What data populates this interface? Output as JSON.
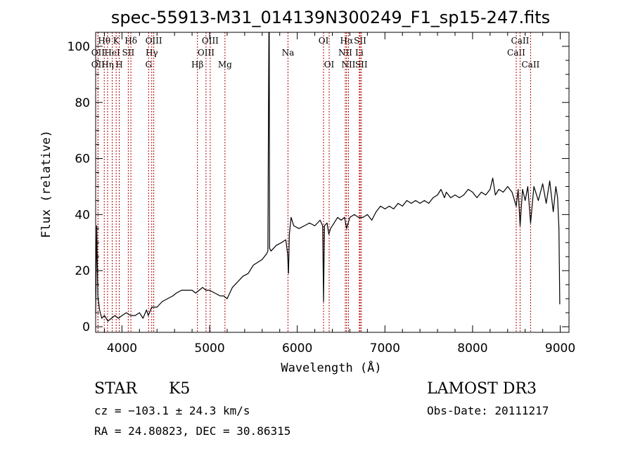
{
  "chart_data": {
    "type": "line",
    "title": "spec-55913-M31_014139N300249_F1_sp15-247.fits",
    "xlabel": "Wavelength (Å)",
    "ylabel": "Flux (relative)",
    "xlim": [
      3700,
      9100
    ],
    "ylim": [
      -2,
      105
    ],
    "xticks": [
      4000,
      5000,
      6000,
      7000,
      8000,
      9000
    ],
    "yticks": [
      0,
      20,
      40,
      60,
      80,
      100
    ],
    "line_color": "#000000",
    "marker_color": "#b30000",
    "spectrum": [
      [
        3700,
        5
      ],
      [
        3712,
        36
      ],
      [
        3725,
        11
      ],
      [
        3745,
        6
      ],
      [
        3770,
        3
      ],
      [
        3800,
        4
      ],
      [
        3840,
        2
      ],
      [
        3880,
        3
      ],
      [
        3920,
        4
      ],
      [
        3960,
        3
      ],
      [
        4000,
        4
      ],
      [
        4050,
        5
      ],
      [
        4100,
        4
      ],
      [
        4150,
        4
      ],
      [
        4200,
        5
      ],
      [
        4240,
        3
      ],
      [
        4280,
        6
      ],
      [
        4300,
        4
      ],
      [
        4340,
        7
      ],
      [
        4400,
        7
      ],
      [
        4460,
        9
      ],
      [
        4520,
        10
      ],
      [
        4580,
        11
      ],
      [
        4620,
        12
      ],
      [
        4680,
        13
      ],
      [
        4740,
        13
      ],
      [
        4800,
        13
      ],
      [
        4840,
        12
      ],
      [
        4880,
        13
      ],
      [
        4920,
        14
      ],
      [
        4960,
        13
      ],
      [
        5000,
        13
      ],
      [
        5060,
        12
      ],
      [
        5120,
        11
      ],
      [
        5160,
        11
      ],
      [
        5200,
        10
      ],
      [
        5260,
        14
      ],
      [
        5320,
        16
      ],
      [
        5380,
        18
      ],
      [
        5440,
        19
      ],
      [
        5500,
        22
      ],
      [
        5550,
        23
      ],
      [
        5600,
        24
      ],
      [
        5650,
        26
      ],
      [
        5665,
        27
      ],
      [
        5672,
        80
      ],
      [
        5676,
        105
      ],
      [
        5680,
        105
      ],
      [
        5684,
        28
      ],
      [
        5700,
        27
      ],
      [
        5760,
        29
      ],
      [
        5820,
        30
      ],
      [
        5870,
        31
      ],
      [
        5890,
        26
      ],
      [
        5900,
        19
      ],
      [
        5910,
        33
      ],
      [
        5930,
        39
      ],
      [
        5960,
        36
      ],
      [
        6020,
        35
      ],
      [
        6080,
        36
      ],
      [
        6140,
        37
      ],
      [
        6200,
        36
      ],
      [
        6260,
        38
      ],
      [
        6290,
        36
      ],
      [
        6300,
        9
      ],
      [
        6310,
        36
      ],
      [
        6340,
        37
      ],
      [
        6360,
        33
      ],
      [
        6380,
        35
      ],
      [
        6420,
        37
      ],
      [
        6460,
        39
      ],
      [
        6500,
        38
      ],
      [
        6540,
        39
      ],
      [
        6563,
        35
      ],
      [
        6600,
        39
      ],
      [
        6650,
        40
      ],
      [
        6700,
        39
      ],
      [
        6750,
        39
      ],
      [
        6800,
        40
      ],
      [
        6850,
        38
      ],
      [
        6900,
        41
      ],
      [
        6950,
        43
      ],
      [
        7000,
        42
      ],
      [
        7050,
        43
      ],
      [
        7100,
        42
      ],
      [
        7150,
        44
      ],
      [
        7200,
        43
      ],
      [
        7250,
        45
      ],
      [
        7300,
        44
      ],
      [
        7350,
        45
      ],
      [
        7400,
        44
      ],
      [
        7450,
        45
      ],
      [
        7500,
        44
      ],
      [
        7550,
        46
      ],
      [
        7600,
        47
      ],
      [
        7640,
        49
      ],
      [
        7680,
        46
      ],
      [
        7700,
        48
      ],
      [
        7750,
        46
      ],
      [
        7800,
        47
      ],
      [
        7850,
        46
      ],
      [
        7900,
        47
      ],
      [
        7950,
        49
      ],
      [
        8000,
        48
      ],
      [
        8050,
        46
      ],
      [
        8100,
        48
      ],
      [
        8150,
        47
      ],
      [
        8200,
        49
      ],
      [
        8230,
        53
      ],
      [
        8260,
        47
      ],
      [
        8300,
        49
      ],
      [
        8350,
        48
      ],
      [
        8400,
        50
      ],
      [
        8450,
        48
      ],
      [
        8498,
        43
      ],
      [
        8520,
        49
      ],
      [
        8542,
        36
      ],
      [
        8570,
        49
      ],
      [
        8600,
        45
      ],
      [
        8630,
        50
      ],
      [
        8662,
        37
      ],
      [
        8700,
        50
      ],
      [
        8750,
        45
      ],
      [
        8800,
        51
      ],
      [
        8840,
        44
      ],
      [
        8880,
        52
      ],
      [
        8920,
        41
      ],
      [
        8950,
        50
      ],
      [
        8970,
        46
      ],
      [
        8985,
        35
      ],
      [
        8995,
        8
      ]
    ],
    "line_markers": [
      {
        "label": "OII",
        "wavelength": 3727,
        "row": 2
      },
      {
        "label": "Hθ",
        "wavelength": 3798,
        "row": 0
      },
      {
        "label": "OII",
        "wavelength": 3727,
        "row": 1
      },
      {
        "label": "Hη",
        "wavelength": 3836,
        "row": 2
      },
      {
        "label": "HeI",
        "wavelength": 3889,
        "row": 1
      },
      {
        "label": "K",
        "wavelength": 3934,
        "row": 0
      },
      {
        "label": "H",
        "wavelength": 3969,
        "row": 2
      },
      {
        "label": "SII",
        "wavelength": 4072,
        "row": 1
      },
      {
        "label": "Hδ",
        "wavelength": 4102,
        "row": 0
      },
      {
        "label": "G",
        "wavelength": 4304,
        "row": 2
      },
      {
        "label": "Hγ",
        "wavelength": 4340,
        "row": 1
      },
      {
        "label": "OIII",
        "wavelength": 4363,
        "row": 0
      },
      {
        "label": "Hβ",
        "wavelength": 4861,
        "row": 2
      },
      {
        "label": "OIII",
        "wavelength": 4959,
        "row": 1
      },
      {
        "label": "OIII",
        "wavelength": 5007,
        "row": 0
      },
      {
        "label": "Mg",
        "wavelength": 5175,
        "row": 2
      },
      {
        "label": "Na",
        "wavelength": 5894,
        "row": 1
      },
      {
        "label": "OI",
        "wavelength": 6300,
        "row": 0
      },
      {
        "label": "OI",
        "wavelength": 6364,
        "row": 2
      },
      {
        "label": "NII",
        "wavelength": 6548,
        "row": 1
      },
      {
        "label": "Hα",
        "wavelength": 6563,
        "row": 0
      },
      {
        "label": "NII",
        "wavelength": 6584,
        "row": 2
      },
      {
        "label": "Li",
        "wavelength": 6708,
        "row": 1
      },
      {
        "label": "SII",
        "wavelength": 6717,
        "row": 0
      },
      {
        "label": "SII",
        "wavelength": 6731,
        "row": 2
      },
      {
        "label": "CaII",
        "wavelength": 8498,
        "row": 1
      },
      {
        "label": "CaII",
        "wavelength": 8542,
        "row": 0
      },
      {
        "label": "CaII",
        "wavelength": 8662,
        "row": 2
      }
    ]
  },
  "info": {
    "class": "STAR",
    "subclass": "K5",
    "survey": "LAMOST DR3",
    "cz": "cz = −103.1 ± 24.3 km/s",
    "obs_date": "Obs-Date: 20111217",
    "coords": "RA =  24.80823, DEC =  30.86315"
  }
}
